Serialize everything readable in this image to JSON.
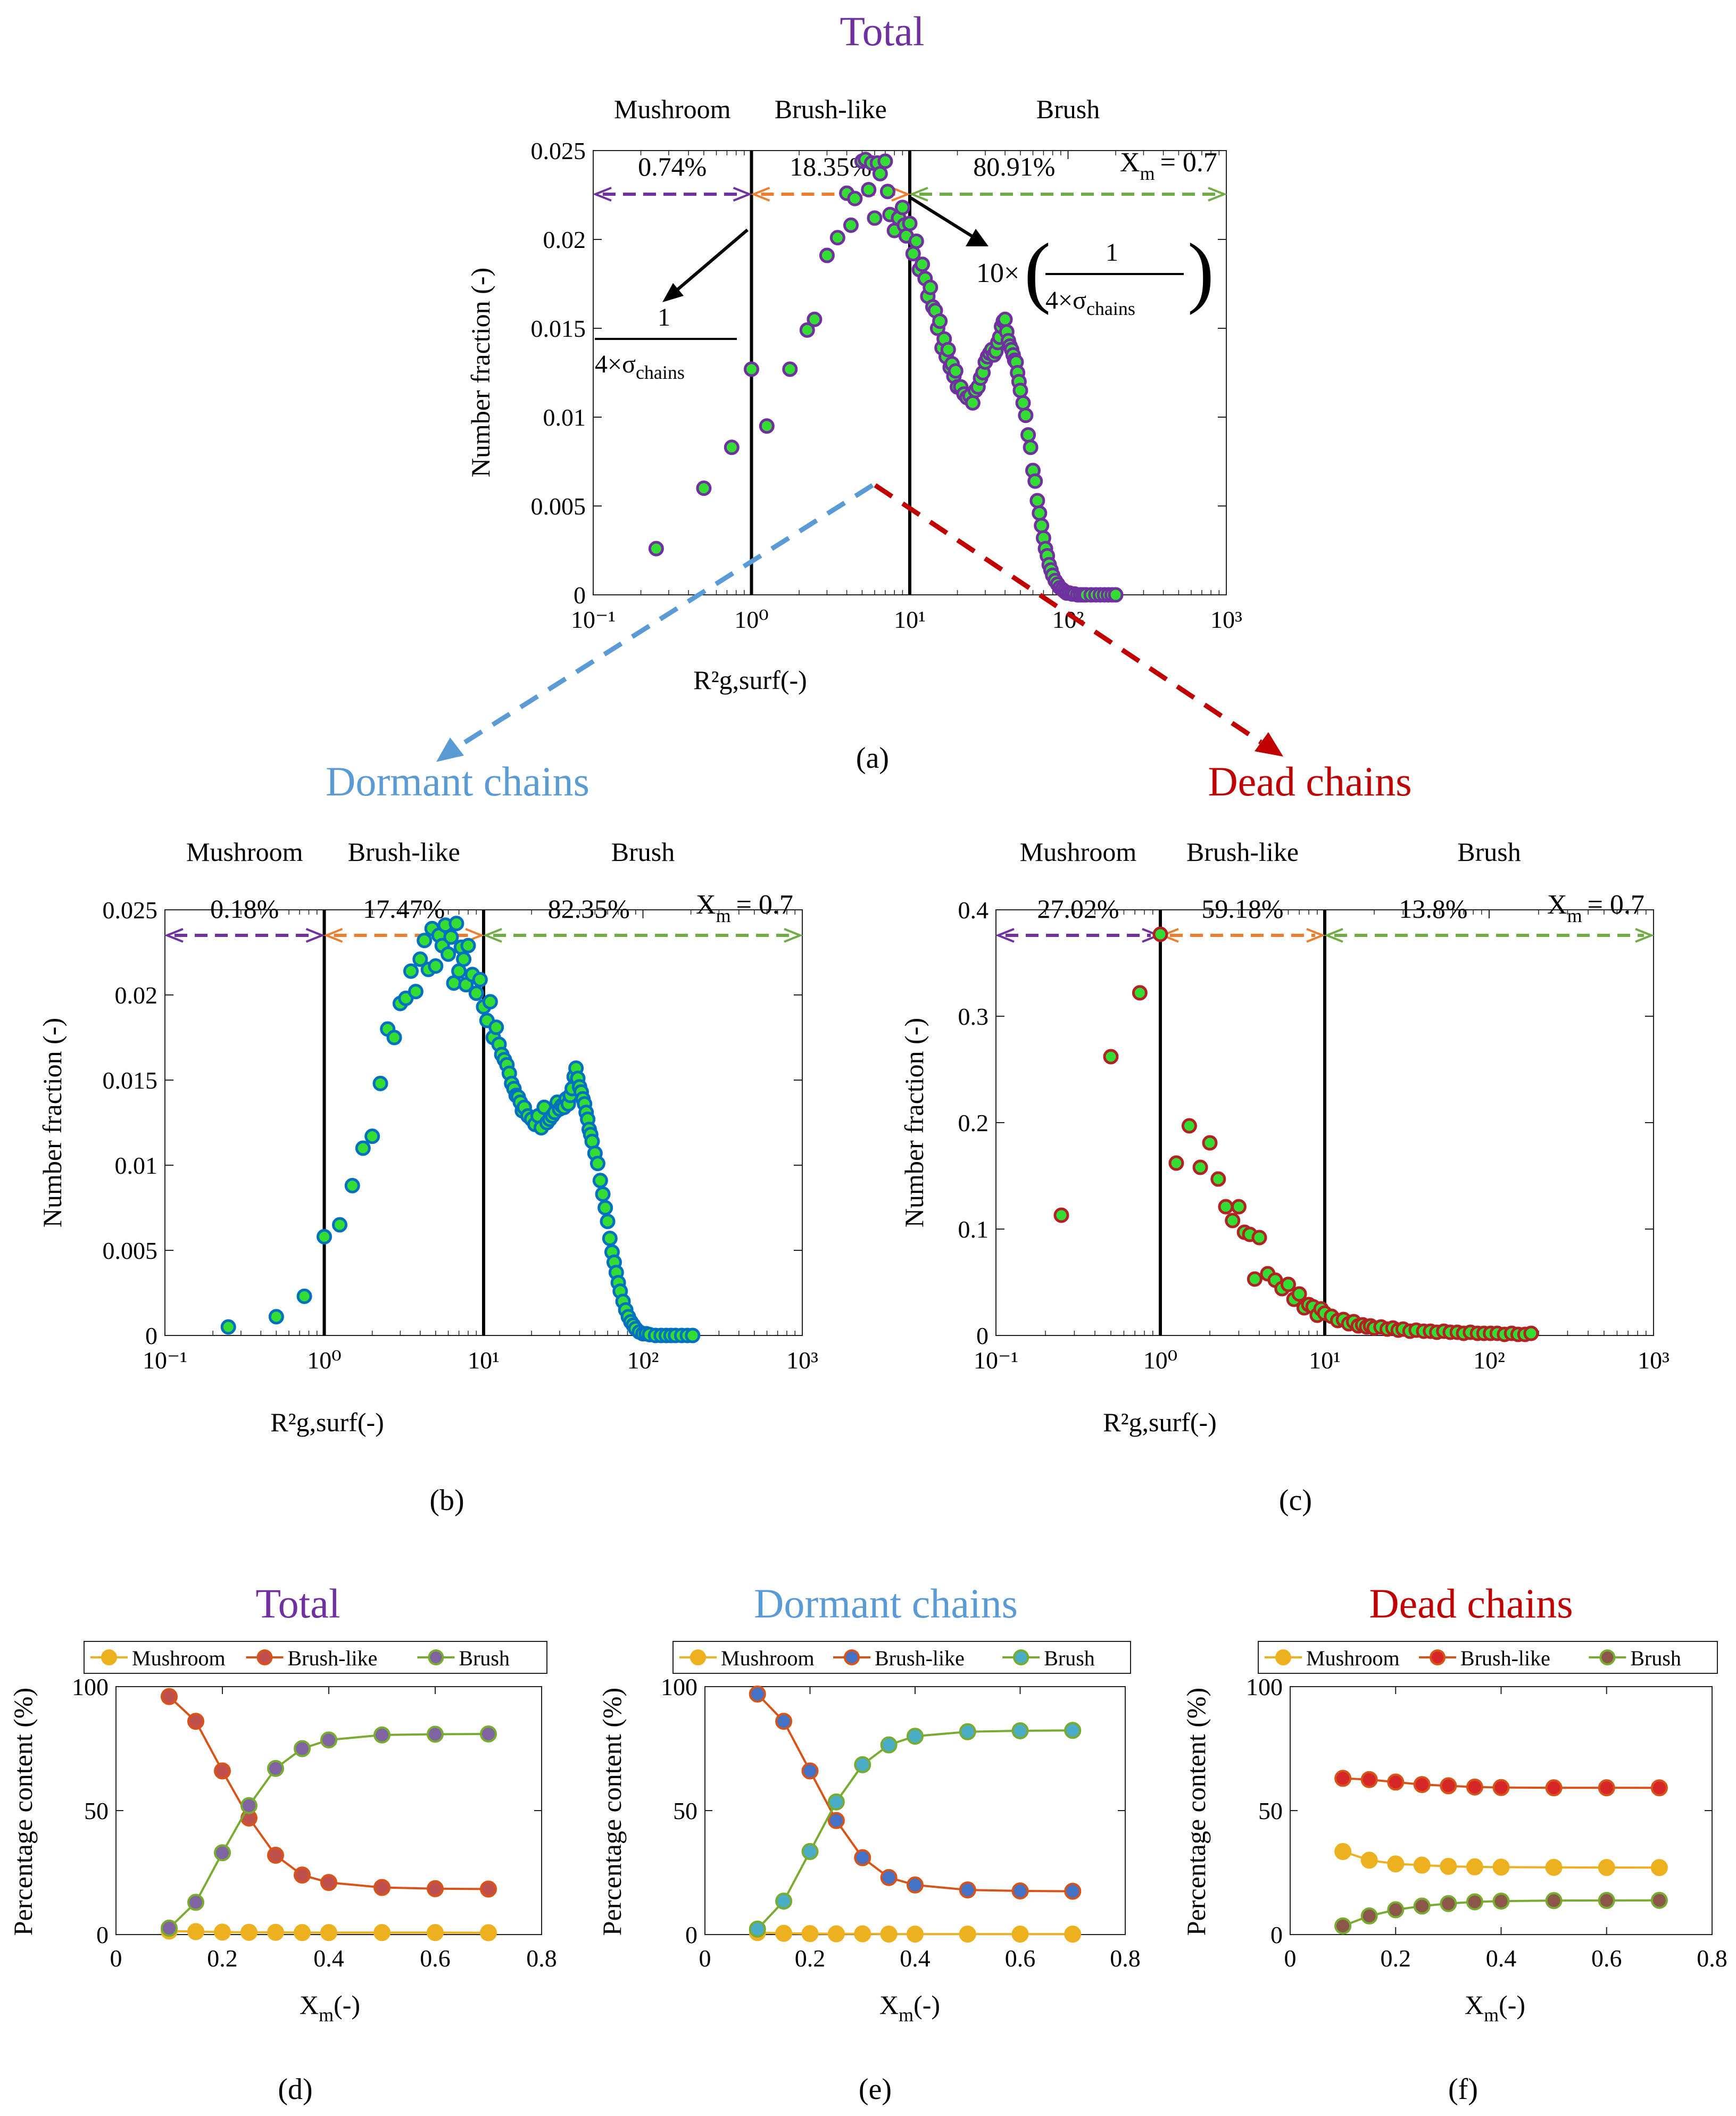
{
  "colors": {
    "total": "#7030A0",
    "dormant": "#5B9BD5",
    "dead": "#C00000",
    "mushroom_arrow": "#7030A0",
    "brushlike_arrow": "#ED7D31",
    "brush_arrow": "#70AD47",
    "marker_fill": "#33DD33",
    "dormant_edge": "#0070C0",
    "dead_edge": "#B22222",
    "line_mushroom": "#EDB120",
    "line_brushlike": "#D95319",
    "line_brush": "#77AC30",
    "fill_mushroom_total": "#EDB120",
    "fill_brushlike_total": "#C0504D",
    "fill_brush_total": "#8064A2",
    "fill_mushroom_dormant": "#EDB120",
    "fill_brushlike_dormant": "#4472C4",
    "fill_brush_dormant": "#4BACC6",
    "fill_mushroom_dead": "#EDB120",
    "fill_brushlike_dead": "#D62728",
    "fill_brush_dead": "#8C564B"
  },
  "panel_labels": {
    "a": "(a)",
    "b": "(b)",
    "c": "(c)",
    "d": "(d)",
    "e": "(e)",
    "f": "(f)"
  },
  "annotations": {
    "one": "1",
    "sigma_denominator": "4×σ",
    "sigma_subscript": "chains",
    "ten_times": "10×"
  },
  "chart_data": [
    {
      "id": "a",
      "type": "scatter",
      "title": "Total",
      "xlabel": "R²g,surf(-)",
      "ylabel": "Number fraction (-)",
      "xscale": "log",
      "xlim": [
        0.1,
        1000
      ],
      "ylim": [
        0,
        0.025
      ],
      "yticks": [
        "0",
        "0.005",
        "0.01",
        "0.015",
        "0.02",
        "0.025"
      ],
      "xticks": [
        "10⁻¹",
        "10⁰",
        "10¹",
        "10²",
        "10³"
      ],
      "vlines": [
        1,
        10
      ],
      "regions": [
        {
          "name": "Mushroom",
          "pct": "0.74%"
        },
        {
          "name": "Brush-like",
          "pct": "18.35%"
        },
        {
          "name": "Brush",
          "pct": "80.91%"
        }
      ],
      "xm_label": "X",
      "xm_sub": "m",
      "xm_value": "= 0.7",
      "x": [
        0.25,
        0.5,
        0.75,
        1.0,
        1.25,
        1.75,
        2.25,
        2.5,
        3.0,
        3.5,
        4.0,
        4.25,
        4.5,
        5.0,
        5.25,
        5.5,
        5.75,
        6.0,
        6.25,
        6.5,
        7.0,
        7.25,
        7.5,
        8.0,
        8.5,
        9.0,
        9.25,
        9.5,
        10.0,
        10.5,
        11.0,
        11.5,
        12.0,
        12.5,
        13.0,
        13.5,
        14.0,
        14.5,
        15.0,
        15.5,
        16.0,
        16.5,
        17.0,
        17.5,
        18.0,
        18.5,
        19.0,
        19.5,
        20.0,
        21.0,
        22.0,
        23.0,
        24.0,
        25.0,
        26.0,
        27.0,
        28.0,
        29.0,
        30.0,
        31.0,
        32.0,
        33.0,
        34.0,
        35.0,
        36.0,
        37.0,
        38.0,
        39.0,
        40.0,
        41.0,
        42.0,
        43.0,
        44.0,
        45.0,
        46.0,
        47.0,
        48.0,
        49.0,
        50.0,
        52.0,
        54.0,
        56.0,
        58.0,
        60.0,
        62.0,
        64.0,
        66.0,
        68.0,
        70.0,
        72.0,
        74.0,
        76.0,
        78.0,
        80.0,
        83.0,
        86.0,
        89.0,
        92.0,
        95.0,
        98.0,
        102.0,
        106.0,
        110.0,
        115.0,
        120.0,
        125.0,
        130.0,
        140.0,
        150.0,
        160.0,
        170.0,
        180.0,
        190.0,
        200.0
      ],
      "y": [
        0.0026,
        0.006,
        0.0083,
        0.0127,
        0.0095,
        0.0127,
        0.0149,
        0.0155,
        0.0191,
        0.0201,
        0.0226,
        0.0208,
        0.0223,
        0.0244,
        0.0245,
        0.0228,
        0.0243,
        0.0212,
        0.0243,
        0.0237,
        0.0244,
        0.0227,
        0.0214,
        0.0205,
        0.0212,
        0.0218,
        0.0208,
        0.0202,
        0.0209,
        0.0192,
        0.0199,
        0.0183,
        0.0186,
        0.0178,
        0.0168,
        0.0173,
        0.0162,
        0.016,
        0.015,
        0.0154,
        0.0139,
        0.0144,
        0.0134,
        0.0138,
        0.0128,
        0.013,
        0.0123,
        0.0126,
        0.0117,
        0.0117,
        0.0113,
        0.0111,
        0.0112,
        0.0108,
        0.0115,
        0.0117,
        0.0122,
        0.0125,
        0.0131,
        0.0134,
        0.0136,
        0.0138,
        0.0135,
        0.0137,
        0.0142,
        0.0145,
        0.0151,
        0.0154,
        0.0155,
        0.0148,
        0.0143,
        0.014,
        0.0138,
        0.0135,
        0.0132,
        0.0131,
        0.0125,
        0.012,
        0.0115,
        0.0108,
        0.0101,
        0.009,
        0.0083,
        0.007,
        0.0064,
        0.0053,
        0.0046,
        0.0039,
        0.0032,
        0.0026,
        0.0022,
        0.0017,
        0.0014,
        0.0011,
        0.0008,
        0.0006,
        0.0004,
        0.0003,
        0.0002,
        0.0001,
        0.0001,
        5e-05,
        5e-05,
        0.0,
        0.0,
        0.0,
        0.0,
        0.0,
        0.0,
        0.0,
        0.0,
        0.0,
        0.0,
        0.0
      ]
    },
    {
      "id": "b",
      "type": "scatter",
      "title": "Dormant chains",
      "xlabel": "R²g,surf(-)",
      "ylabel": "Number fraction (-)",
      "xscale": "log",
      "xlim": [
        0.1,
        1000
      ],
      "ylim": [
        0,
        0.025
      ],
      "yticks": [
        "0",
        "0.005",
        "0.01",
        "0.015",
        "0.02",
        "0.025"
      ],
      "xticks": [
        "10⁻¹",
        "10⁰",
        "10¹",
        "10²",
        "10³"
      ],
      "vlines": [
        1,
        10
      ],
      "regions": [
        {
          "name": "Mushroom",
          "pct": "0.18%"
        },
        {
          "name": "Brush-like",
          "pct": "17.47%"
        },
        {
          "name": "Brush",
          "pct": "82.35%"
        }
      ],
      "xm_label": "X",
      "xm_sub": "m",
      "xm_value": "= 0.7",
      "x": [
        0.25,
        0.5,
        0.75,
        1.0,
        1.25,
        1.5,
        1.75,
        2.0,
        2.25,
        2.5,
        2.75,
        3.0,
        3.25,
        3.5,
        3.75,
        4.0,
        4.25,
        4.5,
        4.75,
        5.0,
        5.25,
        5.5,
        5.75,
        6.0,
        6.25,
        6.5,
        6.75,
        7.0,
        7.25,
        7.5,
        7.75,
        8.0,
        8.5,
        9.0,
        9.5,
        10.0,
        10.5,
        11.0,
        11.5,
        12.0,
        12.5,
        13.0,
        13.5,
        14.0,
        14.5,
        15.0,
        15.5,
        16.0,
        16.5,
        17.0,
        17.5,
        18.0,
        19.0,
        20.0,
        21.0,
        22.0,
        23.0,
        24.0,
        25.0,
        26.0,
        27.0,
        28.0,
        29.0,
        30.0,
        31.0,
        32.0,
        33.0,
        34.0,
        35.0,
        36.0,
        37.0,
        38.0,
        39.0,
        40.0,
        41.0,
        42.0,
        43.0,
        44.0,
        45.0,
        46.0,
        47.0,
        48.0,
        50.0,
        52.0,
        54.0,
        56.0,
        58.0,
        60.0,
        62.0,
        64.0,
        66.0,
        68.0,
        70.0,
        72.0,
        75.0,
        78.0,
        81.0,
        84.0,
        87.0,
        90.0,
        95.0,
        100.0,
        105.0,
        110.0,
        120.0,
        130.0,
        140.0,
        150.0,
        160.0,
        175.0,
        190.0,
        205.0
      ],
      "y": [
        0.0005,
        0.0011,
        0.0023,
        0.0058,
        0.0065,
        0.0088,
        0.011,
        0.0117,
        0.0148,
        0.018,
        0.0175,
        0.0195,
        0.0198,
        0.0214,
        0.0202,
        0.0221,
        0.0232,
        0.0215,
        0.0239,
        0.0217,
        0.0235,
        0.0229,
        0.0241,
        0.0224,
        0.0234,
        0.0207,
        0.0242,
        0.0214,
        0.0228,
        0.0221,
        0.0206,
        0.0229,
        0.0212,
        0.0201,
        0.0209,
        0.0193,
        0.0185,
        0.0196,
        0.0175,
        0.0181,
        0.0171,
        0.0165,
        0.0162,
        0.0159,
        0.0154,
        0.0148,
        0.0145,
        0.0141,
        0.014,
        0.0137,
        0.0132,
        0.0134,
        0.0129,
        0.0127,
        0.0124,
        0.0129,
        0.0122,
        0.0134,
        0.0125,
        0.0127,
        0.0129,
        0.0131,
        0.0137,
        0.0133,
        0.0135,
        0.0134,
        0.0139,
        0.0136,
        0.0141,
        0.0145,
        0.0152,
        0.0157,
        0.0151,
        0.0146,
        0.0143,
        0.0139,
        0.0136,
        0.0131,
        0.0127,
        0.0121,
        0.0118,
        0.0114,
        0.0107,
        0.0101,
        0.0091,
        0.0083,
        0.0075,
        0.0067,
        0.0057,
        0.0049,
        0.0043,
        0.0037,
        0.0031,
        0.0026,
        0.002,
        0.0015,
        0.0011,
        0.0008,
        0.0006,
        0.0004,
        0.0002,
        0.0001,
        0.0001,
        5e-05,
        0.0,
        0.0,
        0.0,
        0.0,
        0.0,
        0.0,
        0.0,
        0.0
      ]
    },
    {
      "id": "c",
      "type": "scatter",
      "title": "Dead chains",
      "xlabel": "R²g,surf(-)",
      "ylabel": "Number fraction (-)",
      "xscale": "log",
      "xlim": [
        0.1,
        1000
      ],
      "ylim": [
        0,
        0.4
      ],
      "yticks": [
        "0",
        "0.1",
        "0.2",
        "0.3",
        "0.4"
      ],
      "xticks": [
        "10⁻¹",
        "10⁰",
        "10¹",
        "10²",
        "10³"
      ],
      "vlines": [
        1,
        10
      ],
      "regions": [
        {
          "name": "Mushroom",
          "pct": "27.02%"
        },
        {
          "name": "Brush-like",
          "pct": "59.18%"
        },
        {
          "name": "Brush",
          "pct": "13.8%"
        }
      ],
      "xm_label": "X",
      "xm_sub": "m",
      "xm_value": "= 0.7",
      "x": [
        0.25,
        0.5,
        0.75,
        1.0,
        1.25,
        1.5,
        1.75,
        2.0,
        2.25,
        2.5,
        2.75,
        3.0,
        3.25,
        3.5,
        3.75,
        4.0,
        4.5,
        5.0,
        5.5,
        6.0,
        6.5,
        7.0,
        7.5,
        8.0,
        8.5,
        9.0,
        9.5,
        10.0,
        11.0,
        12.0,
        13.0,
        14.0,
        15.0,
        16.0,
        17.0,
        18.0,
        19.0,
        20.0,
        22.0,
        24.0,
        26.0,
        28.0,
        30.0,
        33.0,
        36.0,
        40.0,
        44.0,
        48.0,
        53.0,
        58.0,
        64.0,
        70.0,
        77.0,
        85.0,
        93.0,
        102.0,
        112.0,
        124.0,
        137.0,
        150.0,
        165.0,
        180.0
      ],
      "y": [
        0.113,
        0.262,
        0.322,
        0.377,
        0.162,
        0.197,
        0.158,
        0.181,
        0.147,
        0.121,
        0.108,
        0.121,
        0.097,
        0.095,
        0.053,
        0.092,
        0.058,
        0.052,
        0.044,
        0.048,
        0.034,
        0.039,
        0.026,
        0.029,
        0.027,
        0.019,
        0.025,
        0.021,
        0.018,
        0.014,
        0.015,
        0.011,
        0.013,
        0.009,
        0.01,
        0.008,
        0.009,
        0.007,
        0.008,
        0.006,
        0.007,
        0.005,
        0.006,
        0.004,
        0.005,
        0.004,
        0.004,
        0.003,
        0.004,
        0.003,
        0.003,
        0.002,
        0.003,
        0.002,
        0.002,
        0.002,
        0.002,
        0.001,
        0.002,
        0.001,
        0.001,
        0.002
      ]
    },
    {
      "id": "d",
      "type": "line",
      "title": "Total",
      "xlabel": "X",
      "xlabel_sub": "m",
      "xlabel_tail": "(-)",
      "ylabel": "Percentage content (%)",
      "xlim": [
        0,
        0.8
      ],
      "ylim": [
        0,
        100
      ],
      "xticks": [
        "0",
        "0.2",
        "0.4",
        "0.6",
        "0.8"
      ],
      "yticks": [
        "0",
        "50",
        "100"
      ],
      "x": [
        0.1,
        0.15,
        0.2,
        0.25,
        0.3,
        0.35,
        0.4,
        0.5,
        0.6,
        0.7
      ],
      "series": [
        {
          "name": "Mushroom",
          "values": [
            1.4,
            1.2,
            1.0,
            0.9,
            0.9,
            0.8,
            0.8,
            0.8,
            0.8,
            0.74
          ]
        },
        {
          "name": "Brush-like",
          "values": [
            96.0,
            86.0,
            66.0,
            47.0,
            32.0,
            24.0,
            21.0,
            19.0,
            18.5,
            18.35
          ]
        },
        {
          "name": "Brush",
          "values": [
            2.6,
            13.0,
            33.0,
            52.0,
            67.0,
            75.0,
            78.5,
            80.5,
            80.8,
            80.91
          ]
        }
      ]
    },
    {
      "id": "e",
      "type": "line",
      "title": "Dormant chains",
      "xlabel": "X",
      "xlabel_sub": "m",
      "xlabel_tail": "(-)",
      "ylabel": "Percentage content (%)",
      "xlim": [
        0,
        0.8
      ],
      "ylim": [
        0,
        100
      ],
      "xticks": [
        "0",
        "0.2",
        "0.4",
        "0.6",
        "0.8"
      ],
      "yticks": [
        "0",
        "50",
        "100"
      ],
      "x": [
        0.1,
        0.15,
        0.2,
        0.25,
        0.3,
        0.35,
        0.4,
        0.5,
        0.6,
        0.7
      ],
      "series": [
        {
          "name": "Mushroom",
          "values": [
            0.8,
            0.5,
            0.4,
            0.3,
            0.3,
            0.2,
            0.2,
            0.2,
            0.2,
            0.18
          ]
        },
        {
          "name": "Brush-like",
          "values": [
            97.0,
            86.0,
            66.0,
            46.0,
            31.0,
            23.0,
            20.0,
            18.0,
            17.6,
            17.47
          ]
        },
        {
          "name": "Brush",
          "values": [
            2.2,
            13.5,
            33.5,
            53.5,
            68.5,
            76.5,
            80.0,
            81.8,
            82.2,
            82.35
          ]
        }
      ]
    },
    {
      "id": "f",
      "type": "line",
      "title": "Dead chains",
      "xlabel": "X",
      "xlabel_sub": "m",
      "xlabel_tail": "(-)",
      "ylabel": "Percentage content (%)",
      "xlim": [
        0,
        0.8
      ],
      "ylim": [
        0,
        100
      ],
      "xticks": [
        "0",
        "0.2",
        "0.4",
        "0.6",
        "0.8"
      ],
      "yticks": [
        "0",
        "50",
        "100"
      ],
      "x": [
        0.1,
        0.15,
        0.2,
        0.25,
        0.3,
        0.35,
        0.4,
        0.5,
        0.6,
        0.7
      ],
      "series": [
        {
          "name": "Mushroom",
          "values": [
            33.5,
            30.0,
            28.5,
            28.0,
            27.5,
            27.3,
            27.2,
            27.1,
            27.05,
            27.02
          ]
        },
        {
          "name": "Brush-like",
          "values": [
            63.0,
            62.5,
            61.5,
            60.5,
            60.0,
            59.5,
            59.3,
            59.2,
            59.2,
            59.18
          ]
        },
        {
          "name": "Brush",
          "values": [
            3.5,
            7.5,
            10.0,
            11.5,
            12.5,
            13.2,
            13.5,
            13.7,
            13.75,
            13.8
          ]
        }
      ]
    }
  ]
}
